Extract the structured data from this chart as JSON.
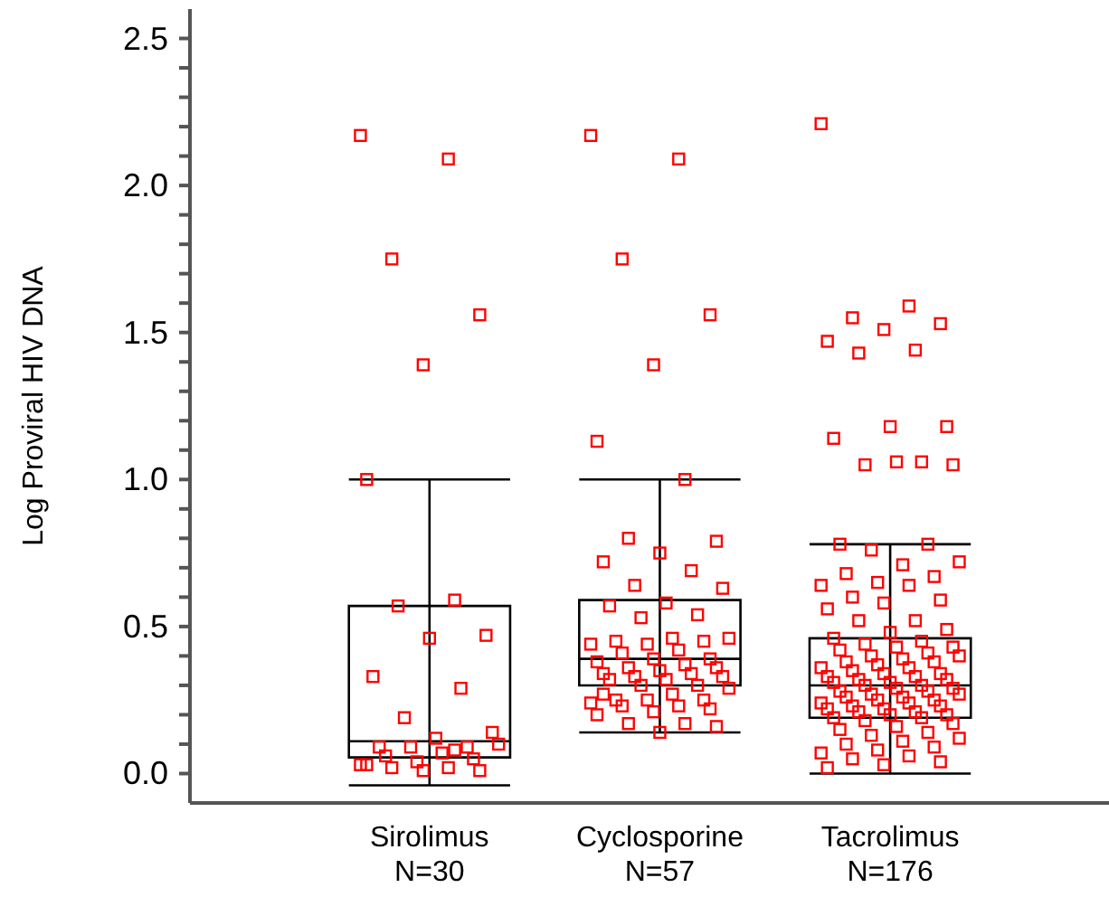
{
  "chart_data": {
    "type": "box",
    "ylabel": "Log  Proviral HIV DNA",
    "categories": [
      "Sirolimus\nN=30",
      "Cyclosporine\nN=57",
      "Tacrolimus\nN=176"
    ],
    "boxes": [
      {
        "low": -0.04,
        "q1": 0.055,
        "median": 0.11,
        "q3": 0.57,
        "high": 1.0
      },
      {
        "low": 0.14,
        "q1": 0.3,
        "median": 0.39,
        "q3": 0.59,
        "high": 1.0
      },
      {
        "low": 0.0,
        "q1": 0.19,
        "median": 0.3,
        "q3": 0.46,
        "high": 0.78
      }
    ],
    "color": "#000000",
    "ylim": [
      -0.1,
      2.6
    ],
    "yticks": [
      {
        "value": 0,
        "label": "0.0"
      },
      {
        "value": 0.1,
        "label": null
      },
      {
        "value": 0.2,
        "label": null
      },
      {
        "value": 0.3,
        "label": null
      },
      {
        "value": 0.4,
        "label": null
      },
      {
        "value": 0.5,
        "label": "0.5"
      },
      {
        "value": 0.6,
        "label": null
      },
      {
        "value": 0.7,
        "label": null
      },
      {
        "value": 0.8,
        "label": null
      },
      {
        "value": 0.9,
        "label": null
      },
      {
        "value": 1,
        "label": "1.0"
      },
      {
        "value": 1.1,
        "label": null
      },
      {
        "value": 1.2,
        "label": null
      },
      {
        "value": 1.3,
        "label": null
      },
      {
        "value": 1.4,
        "label": null
      },
      {
        "value": 1.5,
        "label": "1.5"
      },
      {
        "value": 1.6,
        "label": null
      },
      {
        "value": 1.7,
        "label": null
      },
      {
        "value": 1.8,
        "label": null
      },
      {
        "value": 1.9,
        "label": null
      },
      {
        "value": 2,
        "label": "2.0"
      },
      {
        "value": 2.1,
        "label": null
      },
      {
        "value": 2.2,
        "label": null
      },
      {
        "value": 2.3,
        "label": null
      },
      {
        "value": 2.4,
        "label": null
      },
      {
        "value": 2.5,
        "label": "2.5"
      }
    ],
    "grid": false,
    "marker": "square",
    "series": [
      {
        "type": "scatter",
        "color": "#ff0000",
        "x": [
          "Sirolimus\nN=30",
          "Sirolimus\nN=30",
          "Sirolimus\nN=30",
          "Sirolimus\nN=30",
          "Sirolimus\nN=30",
          "Sirolimus\nN=30",
          "Sirolimus\nN=30",
          "Sirolimus\nN=30",
          "Sirolimus\nN=30",
          "Sirolimus\nN=30",
          "Sirolimus\nN=30",
          "Sirolimus\nN=30",
          "Sirolimus\nN=30",
          "Sirolimus\nN=30",
          "Sirolimus\nN=30",
          "Sirolimus\nN=30",
          "Sirolimus\nN=30",
          "Sirolimus\nN=30",
          "Sirolimus\nN=30",
          "Sirolimus\nN=30",
          "Sirolimus\nN=30",
          "Sirolimus\nN=30",
          "Sirolimus\nN=30",
          "Sirolimus\nN=30",
          "Sirolimus\nN=30",
          "Sirolimus\nN=30",
          "Sirolimus\nN=30",
          "Sirolimus\nN=30",
          "Sirolimus\nN=30",
          "Sirolimus\nN=30"
        ],
        "values": [
          2.17,
          2.09,
          1.75,
          1.56,
          1.39,
          1.0,
          0.59,
          0.57,
          0.47,
          0.46,
          0.33,
          0.29,
          0.19,
          0.14,
          0.12,
          0.09,
          0.09,
          0.09,
          0.1,
          0.07,
          0.06,
          0.05,
          0.04,
          0.03,
          0.02,
          0.02,
          0.01,
          0.01,
          0.03,
          0.08
        ]
      },
      {
        "type": "scatter",
        "color": "#ff0000",
        "x": [
          "Cyclosporine\nN=57",
          "Cyclosporine\nN=57",
          "Cyclosporine\nN=57",
          "Cyclosporine\nN=57",
          "Cyclosporine\nN=57",
          "Cyclosporine\nN=57",
          "Cyclosporine\nN=57",
          "Cyclosporine\nN=57",
          "Cyclosporine\nN=57",
          "Cyclosporine\nN=57",
          "Cyclosporine\nN=57",
          "Cyclosporine\nN=57",
          "Cyclosporine\nN=57",
          "Cyclosporine\nN=57",
          "Cyclosporine\nN=57",
          "Cyclosporine\nN=57",
          "Cyclosporine\nN=57",
          "Cyclosporine\nN=57",
          "Cyclosporine\nN=57",
          "Cyclosporine\nN=57",
          "Cyclosporine\nN=57",
          "Cyclosporine\nN=57",
          "Cyclosporine\nN=57",
          "Cyclosporine\nN=57",
          "Cyclosporine\nN=57",
          "Cyclosporine\nN=57",
          "Cyclosporine\nN=57",
          "Cyclosporine\nN=57",
          "Cyclosporine\nN=57",
          "Cyclosporine\nN=57",
          "Cyclosporine\nN=57",
          "Cyclosporine\nN=57",
          "Cyclosporine\nN=57",
          "Cyclosporine\nN=57",
          "Cyclosporine\nN=57",
          "Cyclosporine\nN=57",
          "Cyclosporine\nN=57",
          "Cyclosporine\nN=57",
          "Cyclosporine\nN=57",
          "Cyclosporine\nN=57",
          "Cyclosporine\nN=57",
          "Cyclosporine\nN=57",
          "Cyclosporine\nN=57",
          "Cyclosporine\nN=57",
          "Cyclosporine\nN=57",
          "Cyclosporine\nN=57",
          "Cyclosporine\nN=57",
          "Cyclosporine\nN=57",
          "Cyclosporine\nN=57",
          "Cyclosporine\nN=57",
          "Cyclosporine\nN=57",
          "Cyclosporine\nN=57",
          "Cyclosporine\nN=57",
          "Cyclosporine\nN=57",
          "Cyclosporine\nN=57",
          "Cyclosporine\nN=57",
          "Cyclosporine\nN=57"
        ],
        "values": [
          2.17,
          2.09,
          1.75,
          1.56,
          1.39,
          1.13,
          1.0,
          0.8,
          0.79,
          0.75,
          0.72,
          0.69,
          0.64,
          0.63,
          0.58,
          0.57,
          0.54,
          0.53,
          0.46,
          0.46,
          0.45,
          0.45,
          0.44,
          0.44,
          0.42,
          0.41,
          0.39,
          0.39,
          0.38,
          0.37,
          0.36,
          0.36,
          0.35,
          0.34,
          0.34,
          0.33,
          0.33,
          0.32,
          0.32,
          0.3,
          0.3,
          0.29,
          0.27,
          0.25,
          0.25,
          0.25,
          0.24,
          0.23,
          0.23,
          0.22,
          0.21,
          0.2,
          0.17,
          0.17,
          0.16,
          0.14,
          0.27
        ]
      },
      {
        "type": "scatter",
        "color": "#ff0000",
        "x": [
          "Tacrolimus\nN=176",
          "Tacrolimus\nN=176",
          "Tacrolimus\nN=176",
          "Tacrolimus\nN=176",
          "Tacrolimus\nN=176",
          "Tacrolimus\nN=176",
          "Tacrolimus\nN=176",
          "Tacrolimus\nN=176",
          "Tacrolimus\nN=176",
          "Tacrolimus\nN=176",
          "Tacrolimus\nN=176",
          "Tacrolimus\nN=176",
          "Tacrolimus\nN=176",
          "Tacrolimus\nN=176",
          "Tacrolimus\nN=176",
          "Tacrolimus\nN=176",
          "Tacrolimus\nN=176",
          "Tacrolimus\nN=176",
          "Tacrolimus\nN=176",
          "Tacrolimus\nN=176",
          "Tacrolimus\nN=176",
          "Tacrolimus\nN=176",
          "Tacrolimus\nN=176",
          "Tacrolimus\nN=176",
          "Tacrolimus\nN=176",
          "Tacrolimus\nN=176",
          "Tacrolimus\nN=176",
          "Tacrolimus\nN=176",
          "Tacrolimus\nN=176",
          "Tacrolimus\nN=176",
          "Tacrolimus\nN=176",
          "Tacrolimus\nN=176",
          "Tacrolimus\nN=176",
          "Tacrolimus\nN=176",
          "Tacrolimus\nN=176",
          "Tacrolimus\nN=176",
          "Tacrolimus\nN=176",
          "Tacrolimus\nN=176",
          "Tacrolimus\nN=176",
          "Tacrolimus\nN=176",
          "Tacrolimus\nN=176",
          "Tacrolimus\nN=176",
          "Tacrolimus\nN=176",
          "Tacrolimus\nN=176",
          "Tacrolimus\nN=176",
          "Tacrolimus\nN=176",
          "Tacrolimus\nN=176",
          "Tacrolimus\nN=176",
          "Tacrolimus\nN=176",
          "Tacrolimus\nN=176",
          "Tacrolimus\nN=176",
          "Tacrolimus\nN=176",
          "Tacrolimus\nN=176",
          "Tacrolimus\nN=176",
          "Tacrolimus\nN=176",
          "Tacrolimus\nN=176",
          "Tacrolimus\nN=176",
          "Tacrolimus\nN=176",
          "Tacrolimus\nN=176",
          "Tacrolimus\nN=176",
          "Tacrolimus\nN=176",
          "Tacrolimus\nN=176",
          "Tacrolimus\nN=176",
          "Tacrolimus\nN=176",
          "Tacrolimus\nN=176",
          "Tacrolimus\nN=176",
          "Tacrolimus\nN=176",
          "Tacrolimus\nN=176",
          "Tacrolimus\nN=176",
          "Tacrolimus\nN=176",
          "Tacrolimus\nN=176",
          "Tacrolimus\nN=176",
          "Tacrolimus\nN=176",
          "Tacrolimus\nN=176",
          "Tacrolimus\nN=176",
          "Tacrolimus\nN=176",
          "Tacrolimus\nN=176",
          "Tacrolimus\nN=176",
          "Tacrolimus\nN=176",
          "Tacrolimus\nN=176",
          "Tacrolimus\nN=176",
          "Tacrolimus\nN=176",
          "Tacrolimus\nN=176",
          "Tacrolimus\nN=176",
          "Tacrolimus\nN=176",
          "Tacrolimus\nN=176",
          "Tacrolimus\nN=176",
          "Tacrolimus\nN=176",
          "Tacrolimus\nN=176",
          "Tacrolimus\nN=176",
          "Tacrolimus\nN=176",
          "Tacrolimus\nN=176",
          "Tacrolimus\nN=176",
          "Tacrolimus\nN=176",
          "Tacrolimus\nN=176",
          "Tacrolimus\nN=176",
          "Tacrolimus\nN=176",
          "Tacrolimus\nN=176"
        ],
        "values": [
          2.21,
          1.59,
          1.55,
          1.53,
          1.51,
          1.47,
          1.44,
          1.43,
          1.18,
          1.18,
          1.14,
          1.06,
          1.05,
          1.05,
          1.06,
          0.78,
          0.78,
          0.76,
          0.72,
          0.71,
          0.68,
          0.67,
          0.65,
          0.64,
          0.64,
          0.6,
          0.59,
          0.58,
          0.56,
          0.52,
          0.52,
          0.49,
          0.48,
          0.46,
          0.45,
          0.44,
          0.43,
          0.43,
          0.42,
          0.41,
          0.4,
          0.4,
          0.39,
          0.38,
          0.38,
          0.37,
          0.36,
          0.36,
          0.35,
          0.34,
          0.34,
          0.33,
          0.33,
          0.32,
          0.32,
          0.31,
          0.31,
          0.3,
          0.3,
          0.29,
          0.29,
          0.28,
          0.28,
          0.27,
          0.27,
          0.26,
          0.26,
          0.25,
          0.25,
          0.24,
          0.24,
          0.23,
          0.23,
          0.22,
          0.22,
          0.21,
          0.21,
          0.2,
          0.2,
          0.19,
          0.19,
          0.18,
          0.17,
          0.16,
          0.15,
          0.14,
          0.13,
          0.12,
          0.11,
          0.1,
          0.09,
          0.08,
          0.07,
          0.06,
          0.05,
          0.04,
          0.03,
          0.02
        ]
      }
    ]
  }
}
